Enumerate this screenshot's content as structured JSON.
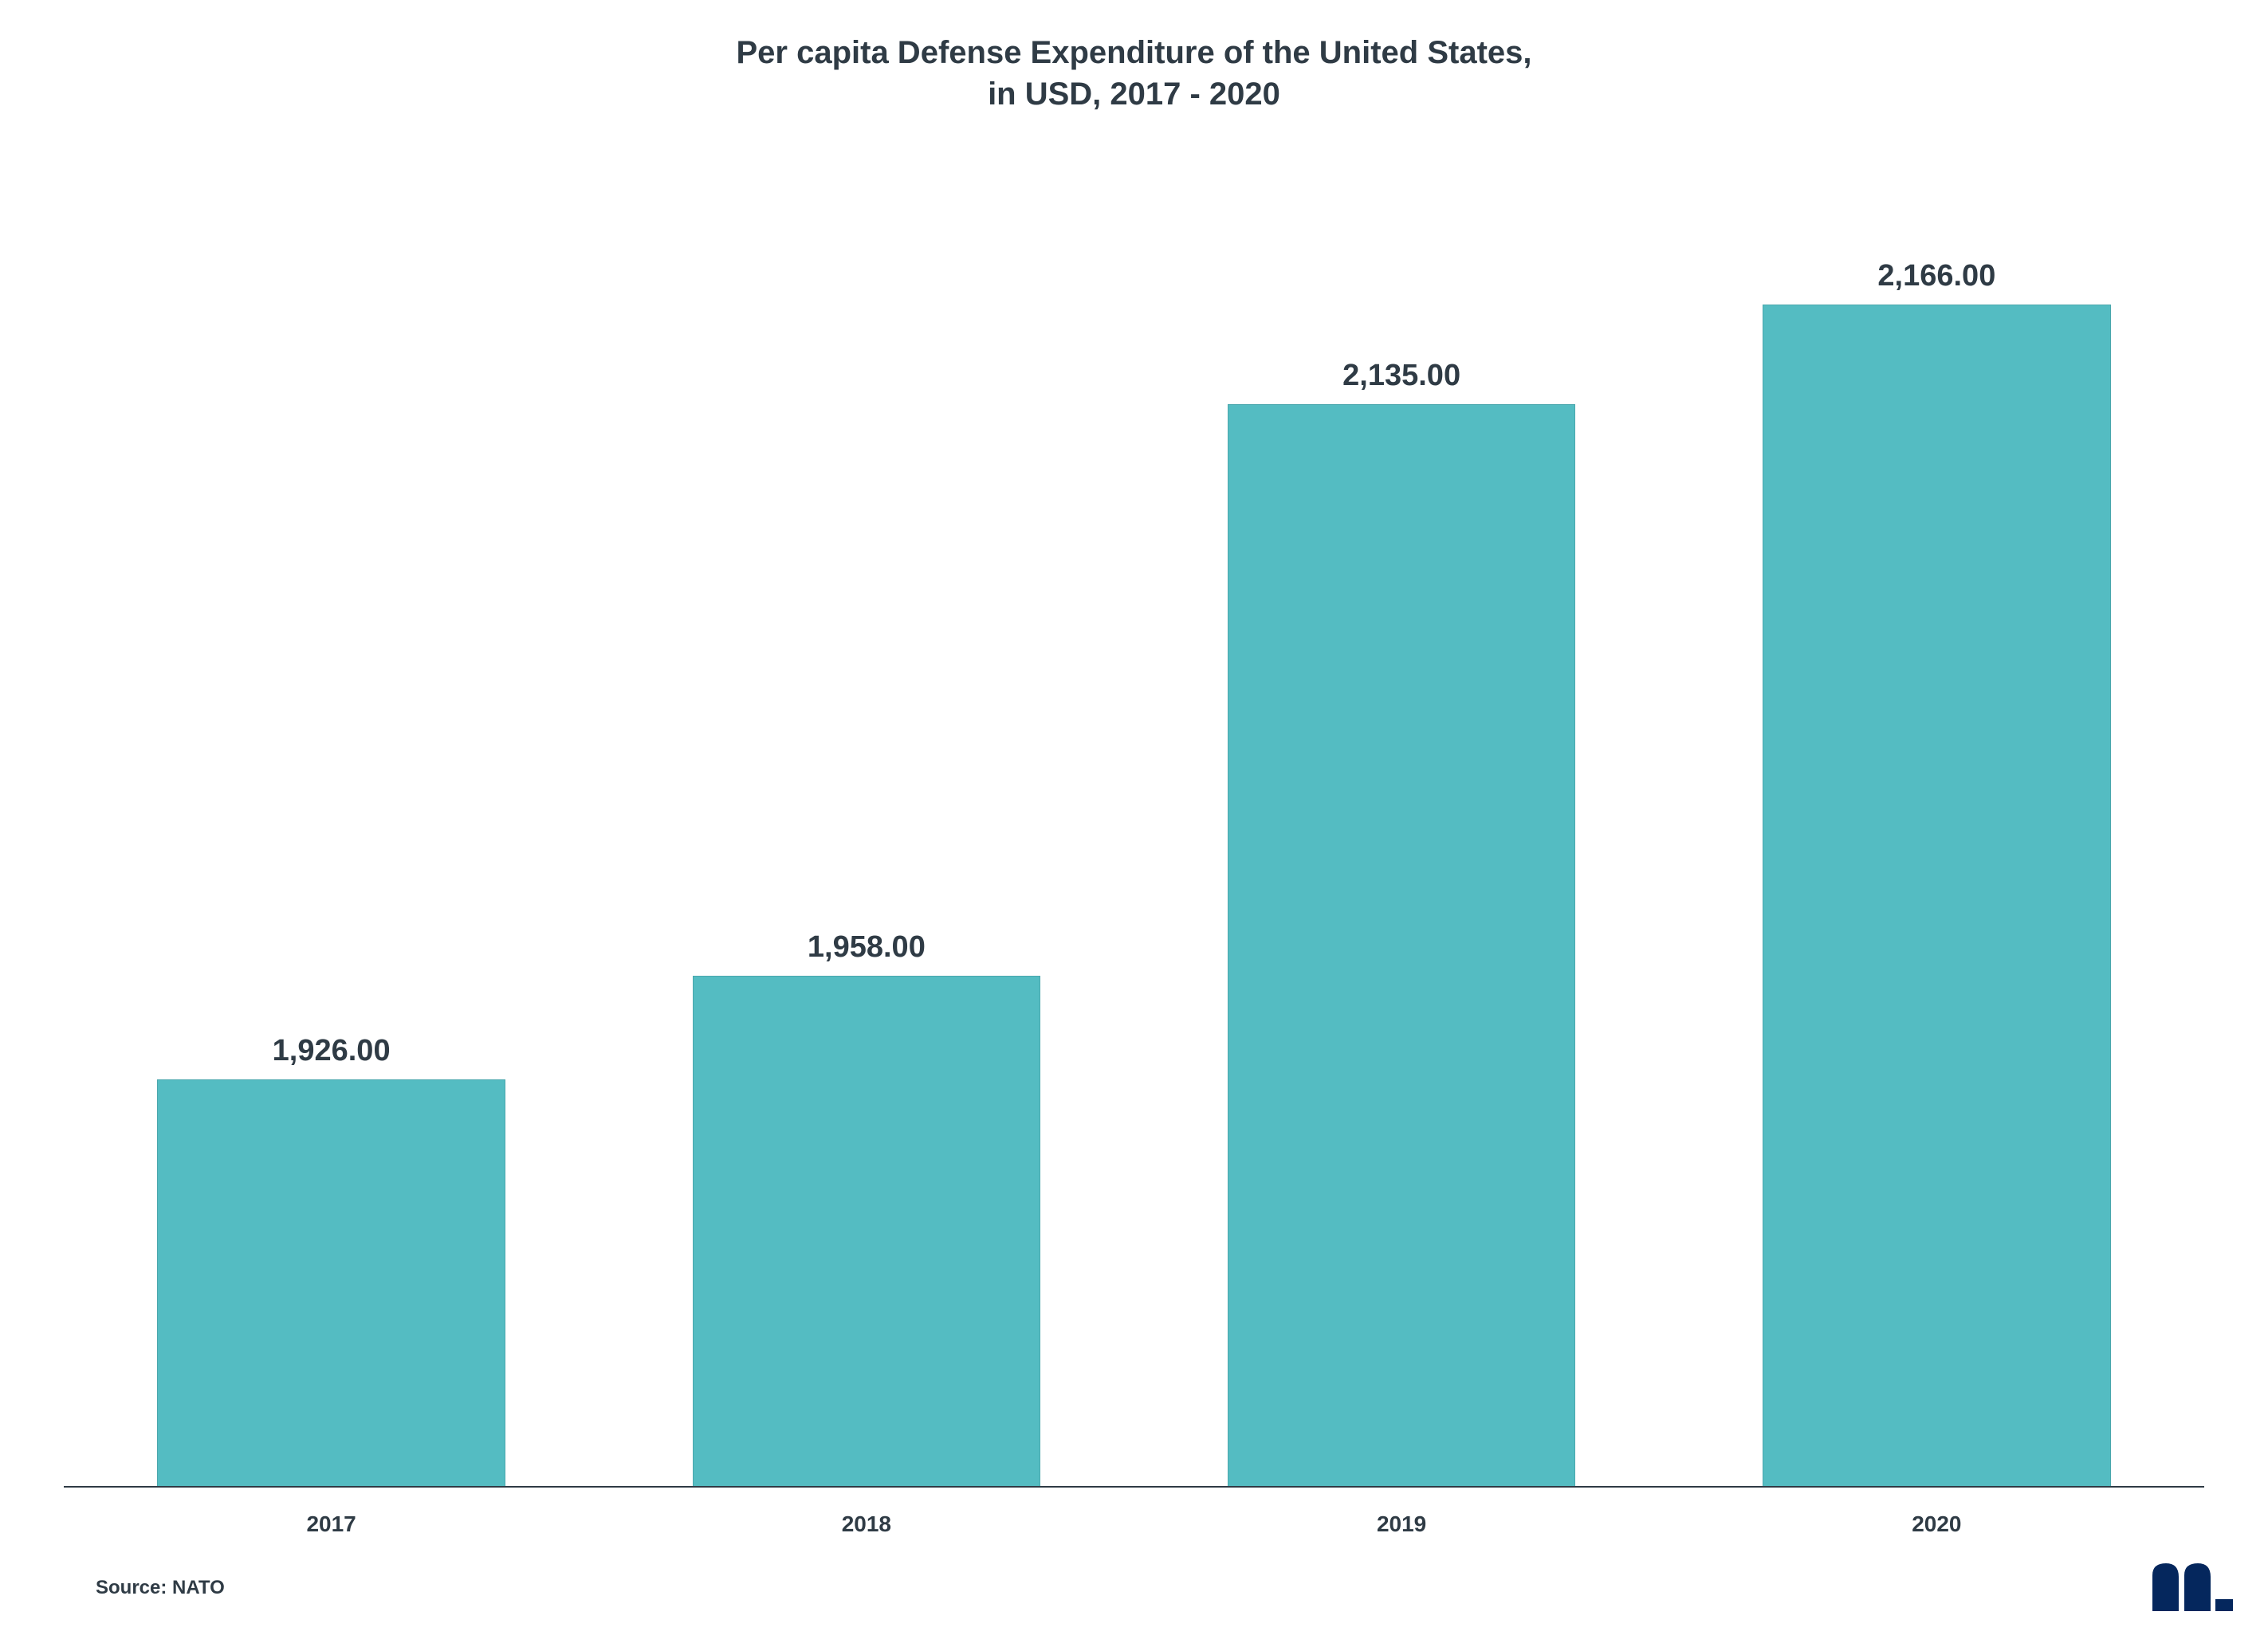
{
  "chart": {
    "type": "bar",
    "title_line1": "Per capita Defense Expenditure of the United States,",
    "title_line2": "in USD, 2017 - 2020",
    "title_fontsize": 40,
    "title_color": "#2f3b45",
    "categories": [
      "2017",
      "2018",
      "2019",
      "2020"
    ],
    "values": [
      1926.0,
      1958.0,
      2135.0,
      2166.0
    ],
    "value_labels": [
      "1,926.00",
      "1,958.00",
      "2,135.00",
      "2,166.00"
    ],
    "bar_colors": [
      "#54bcc2",
      "#54bcc2",
      "#54bcc2",
      "#54bcc2"
    ],
    "bar_width_pct": 65,
    "bar_border_color": "#4aa7ad",
    "bar_border_width": 1,
    "ylim_min": 1800,
    "ylim_max": 2200,
    "value_label_fontsize": 38,
    "value_label_color": "#2f3b45",
    "xlabel_fontsize": 28,
    "xlabel_color": "#2f3b45",
    "axis_color": "#2f3b45",
    "axis_width": 2,
    "background_color": "#ffffff",
    "source_text": "Source: NATO",
    "source_fontsize": 24,
    "source_color": "#2f3b45",
    "watermark_color": "#05275d"
  }
}
